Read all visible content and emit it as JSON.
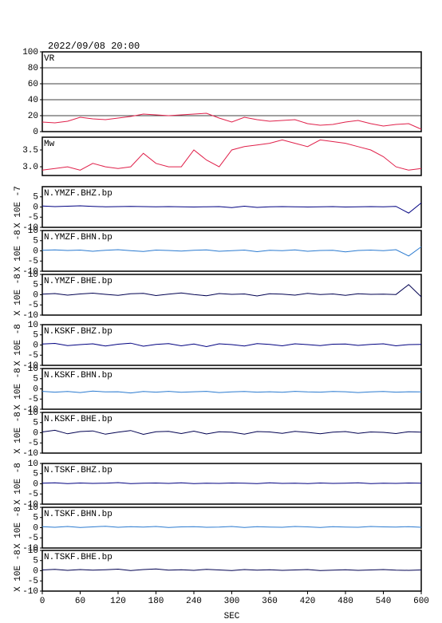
{
  "chart_data": [
    {
      "type": "line",
      "title": "2022/09/08 20:00",
      "label": "VR",
      "color": "#e0204a",
      "grid": true,
      "xlim": [
        0,
        600
      ],
      "ylim": [
        0,
        100
      ],
      "yticks": [
        0,
        20,
        40,
        60,
        80,
        100
      ],
      "x": [
        0,
        20,
        40,
        60,
        80,
        100,
        120,
        140,
        160,
        180,
        200,
        220,
        240,
        260,
        280,
        300,
        320,
        340,
        360,
        380,
        400,
        420,
        440,
        460,
        480,
        500,
        520,
        540,
        560,
        580,
        600
      ],
      "values": [
        12,
        11,
        13,
        18,
        16,
        15,
        17,
        19,
        22,
        21,
        20,
        21,
        22,
        23,
        17,
        12,
        18,
        15,
        13,
        14,
        15,
        10,
        8,
        9,
        12,
        14,
        10,
        7,
        9,
        10,
        3
      ]
    },
    {
      "type": "line",
      "label": "Mw",
      "color": "#e0204a",
      "xlim": [
        0,
        600
      ],
      "ylim": [
        2.74,
        3.88
      ],
      "yticks": [
        {
          "value": 3,
          "label": "3.0"
        },
        3.5
      ],
      "x": [
        0,
        20,
        40,
        60,
        80,
        100,
        120,
        140,
        160,
        180,
        200,
        220,
        240,
        260,
        280,
        300,
        320,
        340,
        360,
        380,
        400,
        420,
        440,
        460,
        480,
        500,
        520,
        540,
        560,
        580,
        600
      ],
      "values": [
        2.9,
        2.95,
        3.0,
        2.9,
        3.1,
        3.0,
        2.95,
        3.0,
        3.4,
        3.1,
        3.0,
        3.0,
        3.5,
        3.2,
        3.0,
        3.5,
        3.6,
        3.65,
        3.7,
        3.8,
        3.7,
        3.6,
        3.8,
        3.75,
        3.7,
        3.6,
        3.5,
        3.3,
        3.0,
        2.9,
        2.95
      ]
    },
    {
      "type": "line",
      "label": "N.YMZF.BHZ.bp",
      "ylabel": "X 10E -7",
      "color": "#000080",
      "xlim": [
        0,
        600
      ],
      "ylim": [
        -10,
        10
      ],
      "yticks": [
        -10,
        -5,
        0,
        5
      ],
      "x": [
        0,
        20,
        40,
        60,
        80,
        100,
        120,
        140,
        160,
        180,
        200,
        220,
        240,
        260,
        280,
        300,
        320,
        340,
        360,
        380,
        400,
        420,
        440,
        460,
        480,
        500,
        520,
        540,
        560,
        580,
        600
      ],
      "values": [
        0.5,
        0.2,
        0.4,
        0.6,
        0.3,
        0.1,
        0.2,
        0.3,
        0.2,
        0.1,
        0.2,
        0.1,
        0,
        0.1,
        0.2,
        -0.3,
        0.4,
        -0.2,
        0.1,
        0.2,
        0.1,
        0,
        0.1,
        0.2,
        0,
        0.1,
        0.2,
        0.1,
        0.3,
        -3,
        2
      ]
    },
    {
      "type": "line",
      "label": "N.YMZF.BHN.bp",
      "ylabel": "X 10E -8",
      "color": "#2a7ad0",
      "xlim": [
        0,
        600
      ],
      "ylim": [
        -10,
        10
      ],
      "yticks": [
        -10,
        -5,
        0,
        5,
        10
      ],
      "x": [
        0,
        20,
        40,
        60,
        80,
        100,
        120,
        140,
        160,
        180,
        200,
        220,
        240,
        260,
        280,
        300,
        320,
        340,
        360,
        380,
        400,
        420,
        440,
        460,
        480,
        500,
        520,
        540,
        560,
        580,
        600
      ],
      "values": [
        0.3,
        0.5,
        0.2,
        0.4,
        -0.2,
        0.3,
        0.6,
        0.1,
        -0.3,
        0.4,
        0.2,
        -0.1,
        0.3,
        0.5,
        -0.2,
        0.1,
        0.4,
        -0.4,
        0.3,
        0.1,
        0.5,
        -0.2,
        0.2,
        0.3,
        -0.5,
        0.2,
        0.4,
        0.1,
        0.6,
        -2.5,
        2
      ]
    },
    {
      "type": "line",
      "label": "N.YMZF.BHE.bp",
      "ylabel": "X 10E -8",
      "color": "#000050",
      "xlim": [
        0,
        600
      ],
      "ylim": [
        -10,
        10
      ],
      "yticks": [
        -10,
        -5,
        0,
        5,
        10
      ],
      "x": [
        0,
        20,
        40,
        60,
        80,
        100,
        120,
        140,
        160,
        180,
        200,
        220,
        240,
        260,
        280,
        300,
        320,
        340,
        360,
        380,
        400,
        420,
        440,
        460,
        480,
        500,
        520,
        540,
        560,
        580,
        600
      ],
      "values": [
        0.3,
        0.6,
        -0.2,
        0.4,
        0.8,
        0.2,
        -0.3,
        0.5,
        0.7,
        -0.4,
        0.3,
        0.9,
        0.1,
        -0.5,
        0.6,
        0.2,
        0.4,
        -0.6,
        0.5,
        0.3,
        -0.2,
        0.7,
        0.1,
        0.4,
        -0.3,
        0.5,
        0.2,
        0.3,
        0.1,
        5,
        -1
      ]
    },
    {
      "type": "line",
      "label": "N.KSKF.BHZ.bp",
      "ylabel": "X 10E -8",
      "color": "#000080",
      "xlim": [
        0,
        600
      ],
      "ylim": [
        -10,
        10
      ],
      "yticks": [
        -10,
        -5,
        0,
        5,
        10
      ],
      "x": [
        0,
        20,
        40,
        60,
        80,
        100,
        120,
        140,
        160,
        180,
        200,
        220,
        240,
        260,
        280,
        300,
        320,
        340,
        360,
        380,
        400,
        420,
        440,
        460,
        480,
        500,
        520,
        540,
        560,
        580,
        600
      ],
      "values": [
        0.5,
        0.8,
        -0.3,
        0.2,
        0.6,
        -0.5,
        0.4,
        0.9,
        -0.6,
        0.3,
        0.7,
        -0.4,
        0.5,
        -0.8,
        0.6,
        0.2,
        -0.5,
        0.7,
        0.3,
        -0.4,
        0.6,
        0.2,
        -0.3,
        0.4,
        0.5,
        -0.2,
        0.3,
        0.6,
        -0.4,
        0.2,
        0.3
      ]
    },
    {
      "type": "line",
      "label": "N.KSKF.BHN.bp",
      "ylabel": "X 10E -8",
      "color": "#2a7ad0",
      "xlim": [
        0,
        600
      ],
      "ylim": [
        -10,
        10
      ],
      "yticks": [
        -10,
        -5,
        0,
        5,
        10
      ],
      "x": [
        0,
        20,
        40,
        60,
        80,
        100,
        120,
        140,
        160,
        180,
        200,
        220,
        240,
        260,
        280,
        300,
        320,
        340,
        360,
        380,
        400,
        420,
        440,
        460,
        480,
        500,
        520,
        540,
        560,
        580,
        600
      ],
      "values": [
        -1.2,
        -1.6,
        -1.3,
        -1.8,
        -1.1,
        -1.5,
        -1.4,
        -2,
        -1.3,
        -1.6,
        -1.2,
        -1.7,
        -1.4,
        -1.2,
        -1.8,
        -1.5,
        -1.3,
        -1.6,
        -1.4,
        -1.7,
        -1.2,
        -1.5,
        -1.6,
        -1.3,
        -1.4,
        -1.8,
        -1.5,
        -1.3,
        -1.6,
        -1.4,
        -1.5
      ]
    },
    {
      "type": "line",
      "label": "N.KSKF.BHE.bp",
      "ylabel": "X 10E -8",
      "color": "#000050",
      "xlim": [
        0,
        600
      ],
      "ylim": [
        -10,
        10
      ],
      "yticks": [
        -10,
        -5,
        0,
        5,
        10
      ],
      "x": [
        0,
        20,
        40,
        60,
        80,
        100,
        120,
        140,
        160,
        180,
        200,
        220,
        240,
        260,
        280,
        300,
        320,
        340,
        360,
        380,
        400,
        420,
        440,
        460,
        480,
        500,
        520,
        540,
        560,
        580,
        600
      ],
      "values": [
        0.4,
        1.2,
        -0.5,
        0.6,
        0.9,
        -0.7,
        0.3,
        1.1,
        -0.8,
        0.5,
        0.7,
        -0.4,
        0.8,
        -0.6,
        0.5,
        0.3,
        -0.7,
        0.6,
        0.4,
        -0.3,
        0.7,
        0.2,
        -0.5,
        0.3,
        0.6,
        -0.3,
        0.4,
        0.2,
        -0.4,
        0.5,
        0.3
      ]
    },
    {
      "type": "line",
      "label": "N.TSKF.BHZ.bp",
      "ylabel": "X 10E -8",
      "color": "#000080",
      "xlim": [
        0,
        600
      ],
      "ylim": [
        -10,
        10
      ],
      "yticks": [
        -10,
        -5,
        0,
        5,
        10
      ],
      "x": [
        0,
        20,
        40,
        60,
        80,
        100,
        120,
        140,
        160,
        180,
        200,
        220,
        240,
        260,
        280,
        300,
        320,
        340,
        360,
        380,
        400,
        420,
        440,
        460,
        480,
        500,
        520,
        540,
        560,
        580,
        600
      ],
      "values": [
        0.3,
        0.5,
        0.1,
        0.4,
        0.2,
        0.3,
        0.6,
        0.1,
        0.3,
        0.4,
        0.2,
        0.5,
        0.1,
        0.3,
        0.2,
        0.4,
        0.3,
        0.1,
        0.5,
        0.2,
        0.3,
        0.1,
        0.4,
        0.2,
        0.3,
        0.5,
        0.1,
        0.3,
        0.2,
        0.4,
        0.3
      ]
    },
    {
      "type": "line",
      "label": "N.TSKF.BHN.bp",
      "ylabel": "X 10E -8",
      "color": "#2a7ad0",
      "xlim": [
        0,
        600
      ],
      "ylim": [
        -10,
        10
      ],
      "yticks": [
        -10,
        -5,
        0,
        5,
        10
      ],
      "x": [
        0,
        20,
        40,
        60,
        80,
        100,
        120,
        140,
        160,
        180,
        200,
        220,
        240,
        260,
        280,
        300,
        320,
        340,
        360,
        380,
        400,
        420,
        440,
        460,
        480,
        500,
        520,
        540,
        560,
        580,
        600
      ],
      "values": [
        0.5,
        0.2,
        0.6,
        0.1,
        0.4,
        0.7,
        0.2,
        0.5,
        0.3,
        0.6,
        0.1,
        0.4,
        0.5,
        0.2,
        0.3,
        0.6,
        0.1,
        0.5,
        0.3,
        0.2,
        0.6,
        0.4,
        0.1,
        0.5,
        0.3,
        0.2,
        0.6,
        0.4,
        0.3,
        0.5,
        0.2
      ]
    },
    {
      "type": "line",
      "label": "N.TSKF.BHE.bp",
      "ylabel": "X 10E -8",
      "color": "#000050",
      "xlim": [
        0,
        600
      ],
      "ylim": [
        -10,
        10
      ],
      "yticks": [
        -10,
        -5,
        0,
        5,
        10
      ],
      "xticks": [
        0,
        60,
        120,
        180,
        240,
        300,
        360,
        420,
        480,
        540,
        600
      ],
      "xlabel": "SEC",
      "x": [
        0,
        20,
        40,
        60,
        80,
        100,
        120,
        140,
        160,
        180,
        200,
        220,
        240,
        260,
        280,
        300,
        320,
        340,
        360,
        380,
        400,
        420,
        440,
        460,
        480,
        500,
        520,
        540,
        560,
        580,
        600
      ],
      "values": [
        0.4,
        0.7,
        0.2,
        0.6,
        0.3,
        0.5,
        0.8,
        0.1,
        0.6,
        0.9,
        0.3,
        0.5,
        0.2,
        0.7,
        0.4,
        0.1,
        0.6,
        0.3,
        0.5,
        0.2,
        0.4,
        0.6,
        0.1,
        0.3,
        0.5,
        0.2,
        0.4,
        0.6,
        0.3,
        0.2,
        0.4
      ]
    }
  ]
}
